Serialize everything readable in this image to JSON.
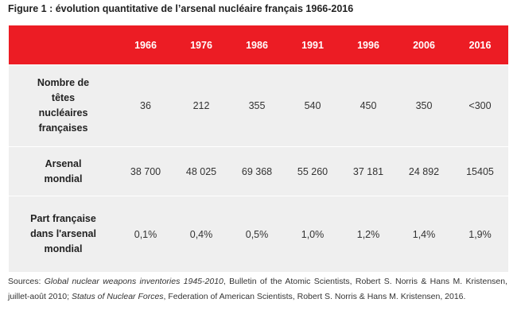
{
  "figure": {
    "title": "Figure 1 : évolution quantitative de l’arsenal nucléaire français 1966-2016"
  },
  "table": {
    "years": [
      "1966",
      "1976",
      "1986",
      "1991",
      "1996",
      "2006",
      "2016"
    ],
    "rows": [
      {
        "label_lines": [
          "Nombre de",
          "têtes",
          "nucléaires",
          "françaises"
        ],
        "values": [
          "36",
          "212",
          "355",
          "540",
          "450",
          "350",
          "<300"
        ]
      },
      {
        "label_lines": [
          "Arsenal",
          "mondial"
        ],
        "values": [
          "38 700",
          "48 025",
          "69 368",
          "55 260",
          "37 181",
          "24 892",
          "15405"
        ]
      },
      {
        "label_lines": [
          "Part française",
          "dans l'arsenal",
          "mondial"
        ],
        "values": [
          "0,1%",
          "0,4%",
          "0,5%",
          "1,0%",
          "1,2%",
          "1,4%",
          "1,9%"
        ]
      }
    ]
  },
  "sources": {
    "prefix": "Sources: ",
    "title1": "Global nuclear weapons inventories 1945-2010",
    "text1": ", Bulletin of the Atomic Scientists, Robert S. Norris & Hans M. Kristensen, juillet-août 2010; ",
    "title2": "Status of Nuclear Forces",
    "text2": ", Federation of American Scientists, Robert S. Norris & Hans M. Kristensen, 2016."
  }
}
